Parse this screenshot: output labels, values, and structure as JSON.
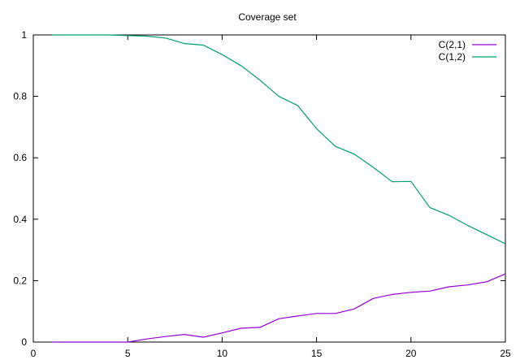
{
  "chart_data": {
    "type": "line",
    "title": "Coverage set",
    "xlabel": "",
    "ylabel": "",
    "xlim": [
      0,
      25
    ],
    "ylim": [
      0,
      1
    ],
    "xticks": [
      0,
      5,
      10,
      15,
      20,
      25
    ],
    "yticks": [
      0,
      0.2,
      0.4,
      0.6,
      0.8,
      1
    ],
    "xtick_labels": [
      "0",
      "5",
      "10",
      "15",
      "20",
      "25"
    ],
    "ytick_labels": [
      "0",
      "0.2",
      "0.4",
      "0.6",
      "0.8",
      "1"
    ],
    "grid": false,
    "legend_position": "top-right",
    "series": [
      {
        "name": "C(2,1)",
        "color": "#9400d3",
        "x": [
          1,
          2,
          3,
          4,
          5,
          6,
          7,
          8,
          9,
          10,
          11,
          12,
          13,
          14,
          15,
          16,
          17,
          18,
          19,
          20,
          21,
          22,
          23,
          24,
          25
        ],
        "y": [
          0,
          0,
          0,
          0,
          0,
          0.01,
          0.018,
          0.025,
          0.016,
          0.03,
          0.045,
          0.048,
          0.076,
          0.085,
          0.093,
          0.093,
          0.108,
          0.142,
          0.155,
          0.162,
          0.166,
          0.18,
          0.186,
          0.196,
          0.222
        ]
      },
      {
        "name": "C(1,2)",
        "color": "#009e73",
        "x": [
          1,
          2,
          3,
          4,
          5,
          6,
          7,
          8,
          9,
          10,
          11,
          12,
          13,
          14,
          15,
          16,
          17,
          18,
          19,
          20,
          21,
          22,
          23,
          24,
          25
        ],
        "y": [
          1,
          1,
          1,
          1,
          0.998,
          0.996,
          0.99,
          0.972,
          0.967,
          0.936,
          0.9,
          0.853,
          0.8,
          0.77,
          0.695,
          0.637,
          0.612,
          0.569,
          0.522,
          0.523,
          0.438,
          0.413,
          0.38,
          0.35,
          0.32
        ]
      }
    ]
  }
}
